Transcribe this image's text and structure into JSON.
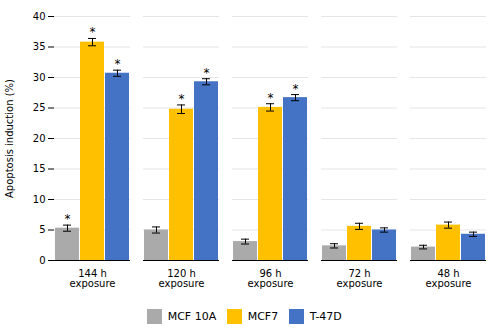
{
  "chart_data": {
    "type": "bar",
    "ylabel": "Apoptosis induction (%)",
    "categories": [
      "144 h\nexposure",
      "120 h\nexposure",
      "96 h\nexposure",
      "72 h\nexposure",
      "48 h\nexposure"
    ],
    "series": [
      {
        "name": "MCF 10A",
        "color": "#AAAAAA",
        "values": [
          5.3,
          5.0,
          3.1,
          2.4,
          2.2
        ],
        "errors": [
          0.5,
          0.5,
          0.4,
          0.35,
          0.3
        ],
        "significant": [
          true,
          false,
          false,
          false,
          false
        ]
      },
      {
        "name": "MCF7",
        "color": "#FFC000",
        "values": [
          35.8,
          24.8,
          25.1,
          5.6,
          5.8
        ],
        "errors": [
          0.6,
          0.7,
          0.6,
          0.5,
          0.5
        ],
        "significant": [
          true,
          true,
          true,
          false,
          false
        ]
      },
      {
        "name": "T-47D",
        "color": "#4472C4",
        "values": [
          30.7,
          29.3,
          26.7,
          5.0,
          4.3
        ],
        "errors": [
          0.5,
          0.5,
          0.5,
          0.35,
          0.35
        ],
        "significant": [
          true,
          true,
          true,
          false,
          false
        ]
      }
    ],
    "significance_label": "*",
    "ylim": [
      0,
      40
    ],
    "yticks": [
      0,
      5,
      10,
      15,
      20,
      25,
      30,
      35,
      40
    ],
    "grid": true,
    "legend": "bottom"
  }
}
